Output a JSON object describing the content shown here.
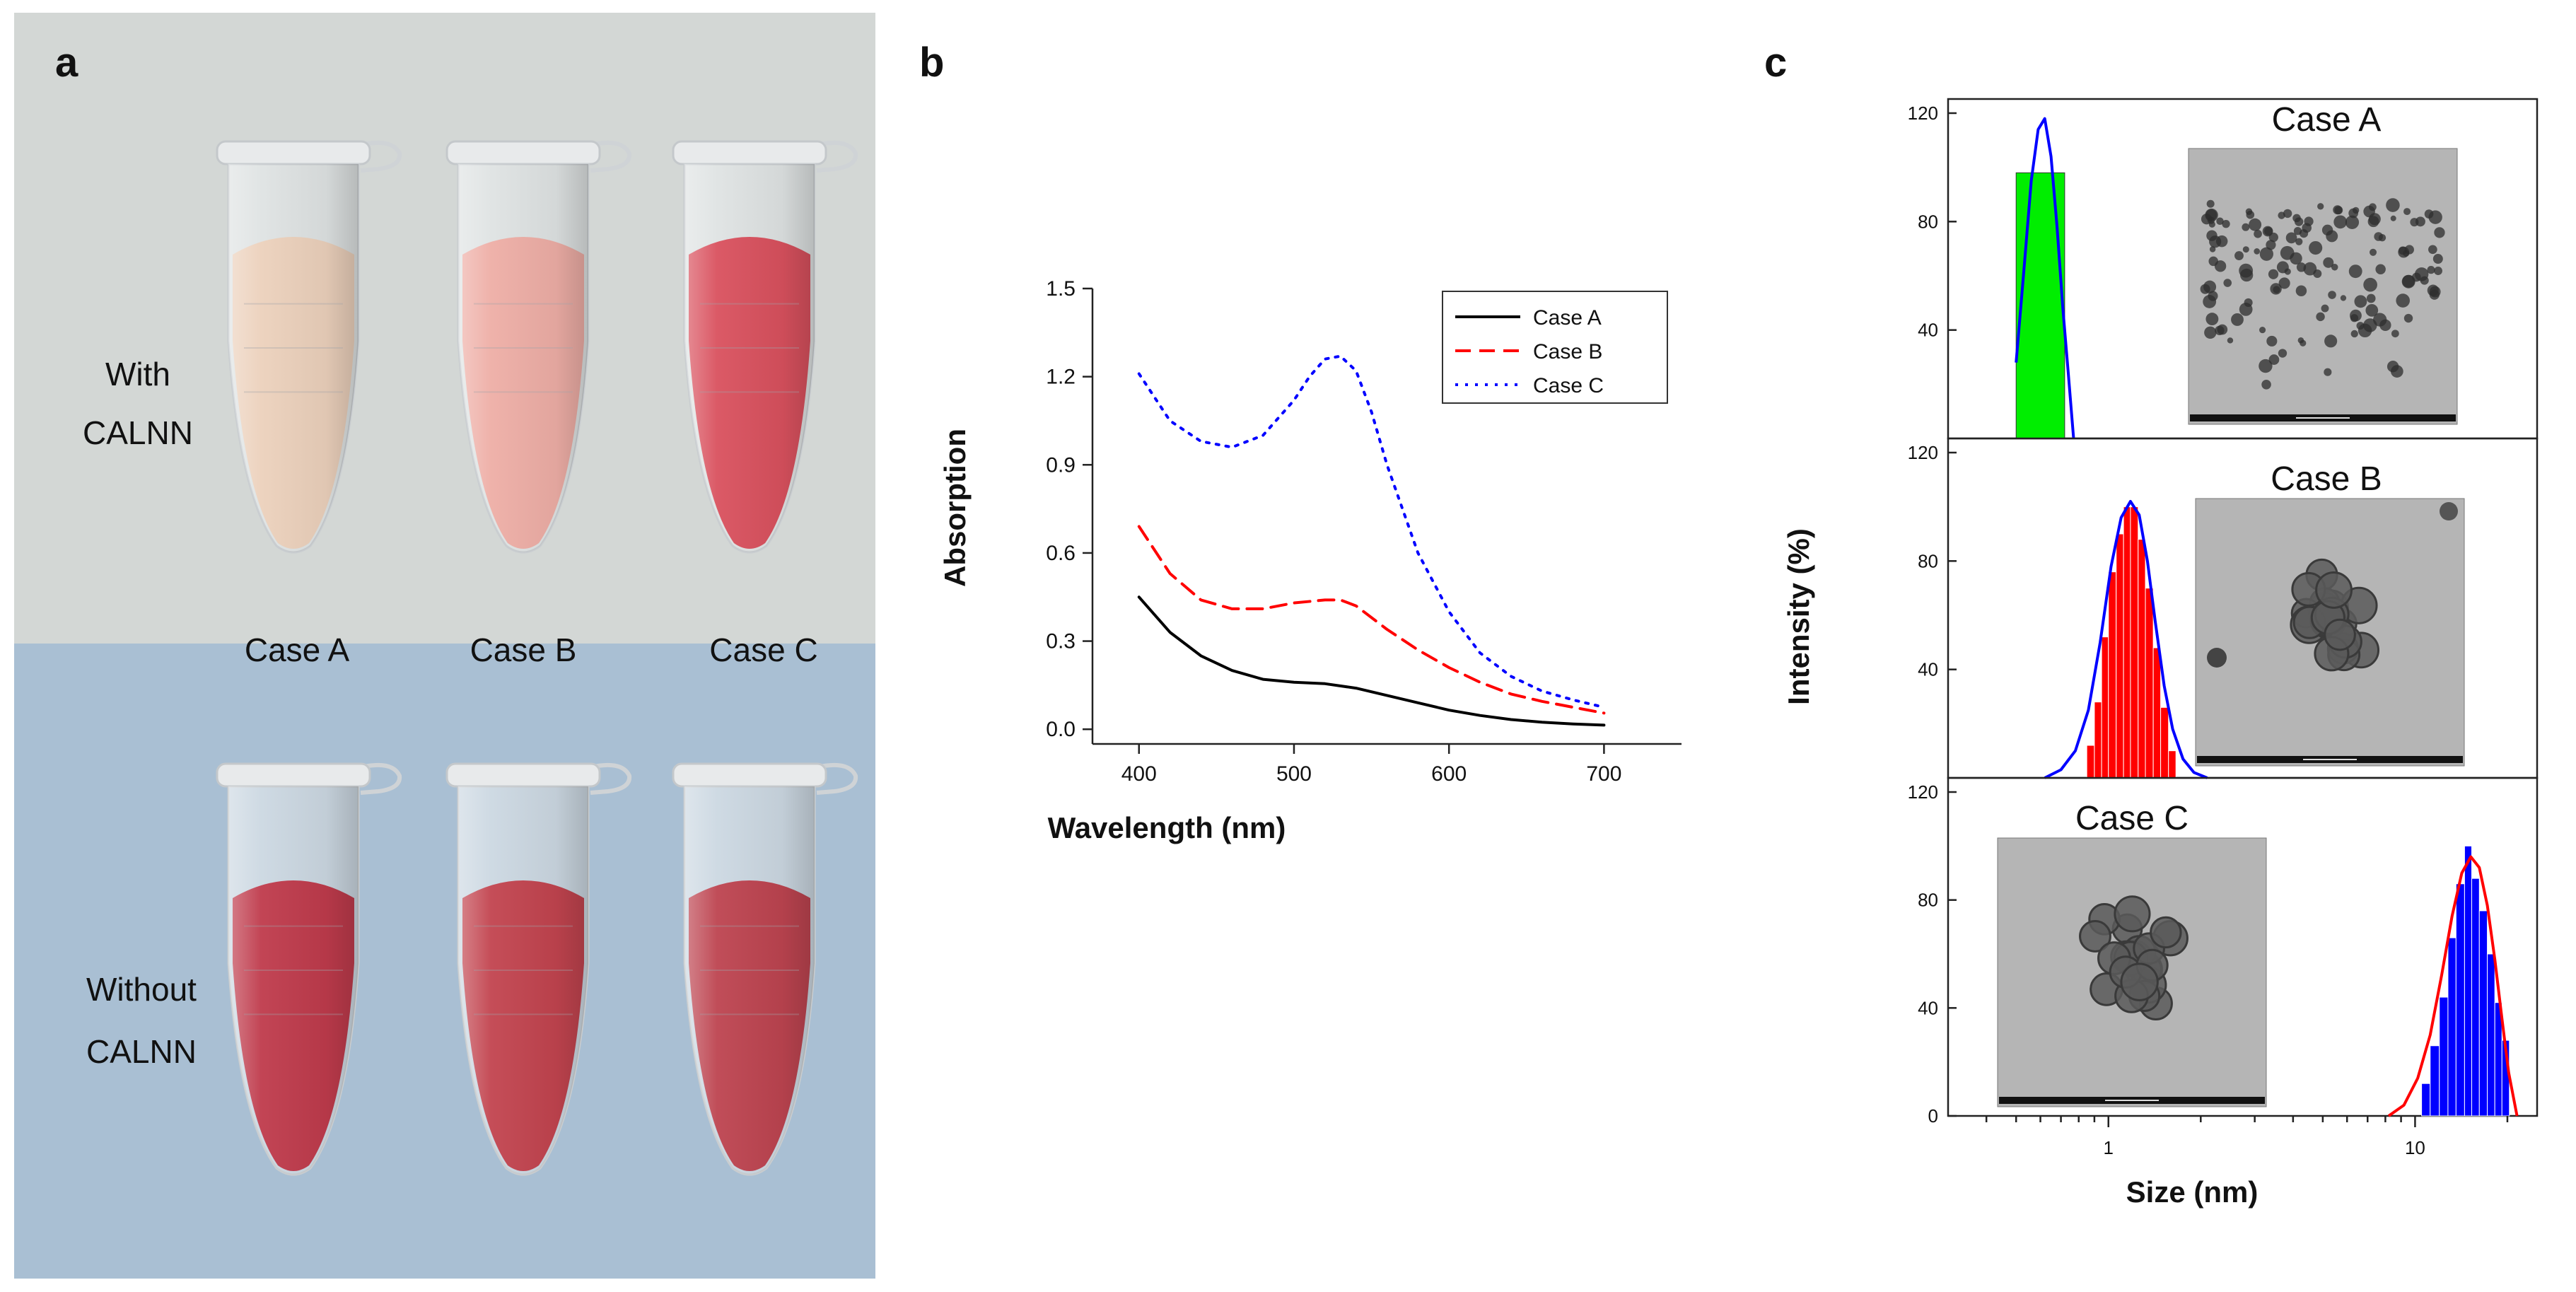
{
  "panel_a": {
    "label": "a",
    "with_label": [
      "With",
      "CALNN"
    ],
    "without_label": [
      "Without",
      "CALNN"
    ],
    "cases": [
      "Case A",
      "Case B",
      "Case C"
    ],
    "colors": {
      "top_bg": "#d3d7d5",
      "bottom_bg": "#a9bfd3",
      "with_liquids": [
        "#ecd1bc",
        "#eeaea6",
        "#d9515e"
      ],
      "without_liquids": [
        "#bf3b4c",
        "#c2444f",
        "#bd4450"
      ]
    }
  },
  "chart_data": [
    {
      "panel": "b",
      "type": "line",
      "xlabel": "Wavelength (nm)",
      "ylabel": "Absorption",
      "xlim": [
        370,
        750
      ],
      "ylim": [
        -0.05,
        1.5
      ],
      "xticks": [
        400,
        500,
        600,
        700
      ],
      "yticks": [
        0.0,
        0.3,
        0.6,
        0.9,
        1.2,
        1.5
      ],
      "ytick_labels": [
        "0.0",
        "0.3",
        "0.6",
        "0.9",
        "1.2",
        "1.5"
      ],
      "legend": "top-right",
      "series": [
        {
          "name": "Case A",
          "color": "#000000",
          "style": "solid",
          "x": [
            400,
            420,
            440,
            460,
            480,
            500,
            520,
            540,
            560,
            580,
            600,
            620,
            640,
            660,
            680,
            700
          ],
          "y": [
            0.45,
            0.33,
            0.25,
            0.2,
            0.17,
            0.16,
            0.155,
            0.14,
            0.115,
            0.09,
            0.065,
            0.047,
            0.033,
            0.024,
            0.018,
            0.014
          ]
        },
        {
          "name": "Case B",
          "color": "#ff0000",
          "style": "dashed",
          "x": [
            400,
            420,
            440,
            460,
            480,
            500,
            520,
            530,
            540,
            560,
            580,
            600,
            620,
            640,
            660,
            680,
            700
          ],
          "y": [
            0.69,
            0.53,
            0.44,
            0.41,
            0.41,
            0.43,
            0.44,
            0.44,
            0.42,
            0.34,
            0.27,
            0.21,
            0.16,
            0.12,
            0.095,
            0.075,
            0.055
          ]
        },
        {
          "name": "Case C",
          "color": "#0000ff",
          "style": "dotted",
          "x": [
            400,
            420,
            440,
            460,
            480,
            500,
            510,
            520,
            530,
            540,
            550,
            560,
            580,
            600,
            620,
            640,
            660,
            680,
            700
          ],
          "y": [
            1.21,
            1.05,
            0.98,
            0.96,
            1.0,
            1.12,
            1.2,
            1.26,
            1.27,
            1.22,
            1.08,
            0.9,
            0.6,
            0.4,
            0.26,
            0.18,
            0.13,
            0.1,
            0.075
          ]
        }
      ]
    },
    {
      "panel": "c",
      "type": "bar",
      "xlabel": "Size (nm)",
      "ylabel": "Intensity (%)",
      "xscale": "log",
      "xlim": [
        0.3,
        25
      ],
      "xticks": [
        1,
        10
      ],
      "ylim": [
        0,
        120
      ],
      "yticks": [
        0,
        40,
        80,
        120
      ],
      "subplots": [
        {
          "title": "Case A",
          "bar_color": "#00ee00",
          "fit_color": "#0000ff",
          "bar_edges": [
            0.5,
            0.72
          ],
          "bar_value": 98,
          "fit": {
            "x": [
              0.5,
              0.53,
              0.56,
              0.59,
              0.62,
              0.65,
              0.68,
              0.71,
              0.74,
              0.77
            ],
            "y": [
              28,
              62,
              95,
              114,
              118,
              104,
              78,
              48,
              24,
              0
            ]
          }
        },
        {
          "title": "Case B",
          "bar_color": "#ff0000",
          "fit_color": "#0000ff",
          "bar_edges": [
            0.85,
            0.9,
            0.95,
            1.0,
            1.06,
            1.12,
            1.18,
            1.25,
            1.32,
            1.4,
            1.48,
            1.57,
            1.66
          ],
          "bar_values": [
            12,
            28,
            52,
            76,
            90,
            100,
            100,
            88,
            70,
            48,
            26,
            10
          ],
          "fit": {
            "x": [
              0.62,
              0.7,
              0.78,
              0.86,
              0.94,
              1.02,
              1.1,
              1.18,
              1.26,
              1.34,
              1.42,
              1.52,
              1.62,
              1.75,
              1.9,
              2.1
            ],
            "y": [
              0,
              3,
              10,
              25,
              50,
              78,
              96,
              102,
              97,
              80,
              58,
              34,
              18,
              7,
              2,
              0
            ]
          }
        },
        {
          "title": "Case C",
          "bar_color": "#0000ff",
          "fit_color": "#ff0000",
          "bar_edges": [
            10.5,
            11.2,
            12.0,
            12.8,
            13.6,
            14.5,
            15.3,
            16.2,
            17.2,
            18.2,
            19.2,
            20.3
          ],
          "bar_values": [
            12,
            26,
            44,
            66,
            86,
            100,
            88,
            76,
            60,
            42,
            28
          ],
          "fit": {
            "x": [
              8.2,
              9.2,
              10.2,
              11.2,
              12.2,
              13.2,
              14.2,
              15.2,
              16.2,
              17.2,
              18.2,
              19.2,
              20.2,
              21.5
            ],
            "y": [
              0,
              4,
              14,
              30,
              52,
              74,
              90,
              96,
              92,
              78,
              58,
              36,
              16,
              0
            ]
          }
        }
      ]
    }
  ]
}
